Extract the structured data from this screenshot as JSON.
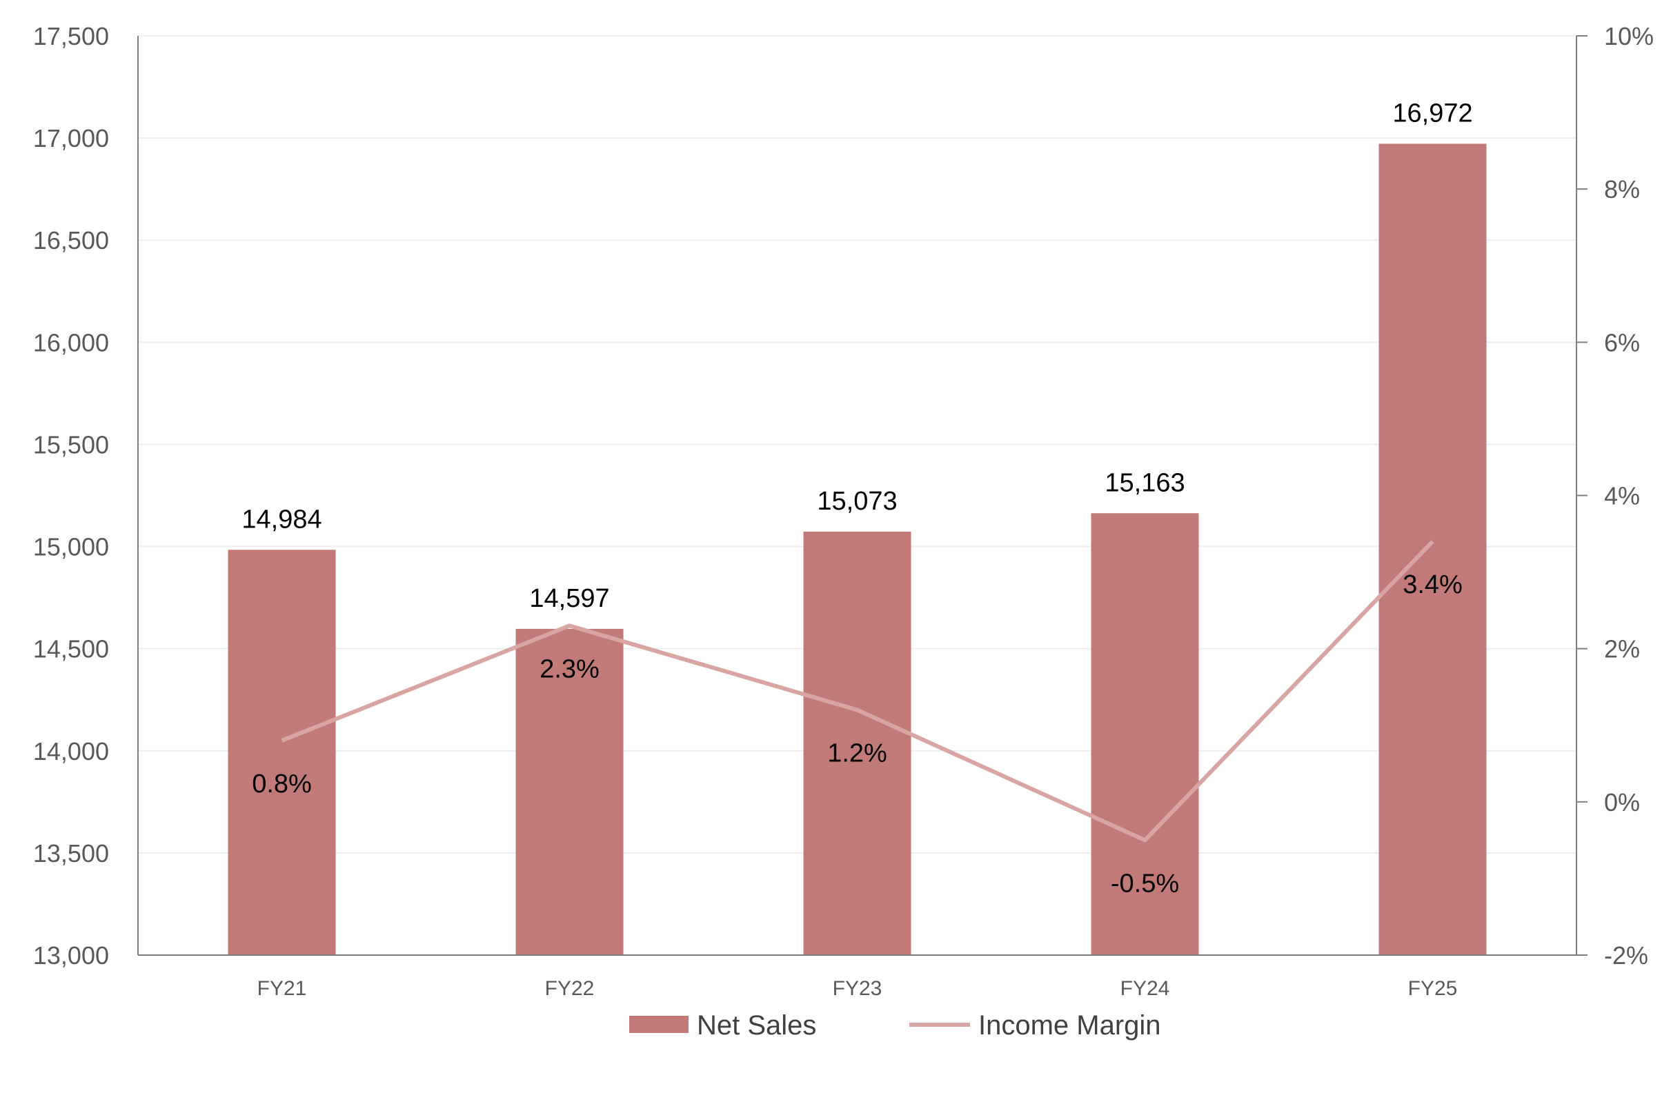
{
  "chart_data": {
    "type": "bar",
    "categories": [
      "FY21",
      "FY22",
      "FY23",
      "FY24",
      "FY25"
    ],
    "series": [
      {
        "name": "Net Sales",
        "type": "bar",
        "axis": "left",
        "values": [
          14984,
          14597,
          15073,
          15163,
          16972
        ],
        "labels": [
          "14,984",
          "14,597",
          "15,073",
          "15,163",
          "16,972"
        ]
      },
      {
        "name": "Income Margin",
        "type": "line",
        "axis": "right",
        "values": [
          0.8,
          2.3,
          1.2,
          -0.5,
          3.4
        ],
        "labels": [
          "0.8%",
          "2.3%",
          "1.2%",
          "-0.5%",
          "3.4%"
        ]
      }
    ],
    "y_left": {
      "range": [
        13000,
        17500
      ],
      "ticks": [
        13000,
        13500,
        14000,
        14500,
        15000,
        15500,
        16000,
        16500,
        17000,
        17500
      ],
      "tick_labels": [
        "13,000",
        "13,500",
        "14,000",
        "14,500",
        "15,000",
        "15,500",
        "16,000",
        "16,500",
        "17,000",
        "17,500"
      ]
    },
    "y_right": {
      "range": [
        -2,
        10
      ],
      "ticks": [
        -2,
        0,
        2,
        4,
        6,
        8,
        10
      ],
      "tick_labels": [
        "-2%",
        "0%",
        "2%",
        "4%",
        "6%",
        "8%",
        "10%"
      ]
    },
    "grid": true,
    "legend": {
      "position": "bottom",
      "entries": [
        "Net Sales",
        "Income Margin"
      ]
    },
    "colors": {
      "bar": "#c27a78",
      "line": "#d9a5a3",
      "axis": "#7f7f7f",
      "grid": "#eeeeee"
    }
  }
}
